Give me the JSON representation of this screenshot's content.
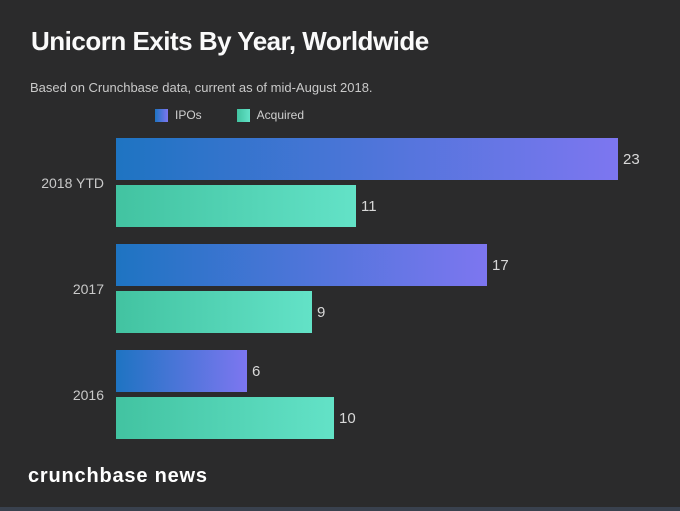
{
  "page": {
    "background_color": "#2b2b2c",
    "bottom_strip_color": "#39414e"
  },
  "header": {
    "title": "Unicorn Exits By Year, Worldwide",
    "subtitle": "Based on Crunchbase data, current as of mid-August 2018."
  },
  "footer": {
    "brand": "crunchbase news"
  },
  "chart_data": {
    "type": "bar",
    "orientation": "horizontal",
    "title": "Unicorn Exits By Year, Worldwide",
    "subtitle": "Based on Crunchbase data, current as of mid-August 2018.",
    "categories": [
      "2018 YTD",
      "2017",
      "2016"
    ],
    "series": [
      {
        "name": "IPOs",
        "values": [
          23,
          17,
          6
        ],
        "gradient_start": "#1e74c2",
        "gradient_end": "#7d76f0"
      },
      {
        "name": "Acquired",
        "values": [
          11,
          9,
          10
        ],
        "gradient_start": "#42c3a1",
        "gradient_end": "#63e2c7"
      }
    ],
    "xlim": [
      0,
      23
    ],
    "value_labels_shown": true,
    "grid": false,
    "legend_position": "top",
    "label_color": "#c9c9c9",
    "value_label_color": "#d8d8d8"
  }
}
